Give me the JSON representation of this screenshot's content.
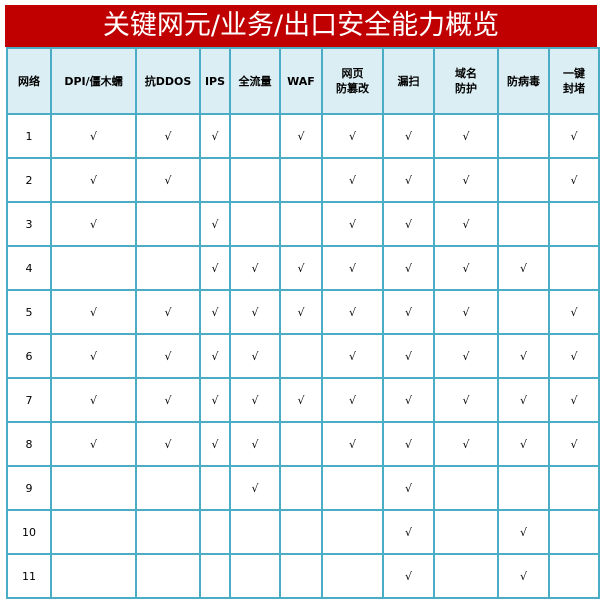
{
  "title": "关键网元/业务/出口安全能力概览",
  "columns": [
    "网络",
    "DPI/僵木蠕",
    "抗DDOS",
    "IPS",
    "全流量",
    "WAF",
    "网页\n防篡改",
    "漏扫",
    "域名\n防护",
    "防病毒",
    "一键\n封堵"
  ],
  "rows": [
    [
      "1",
      "√",
      "√",
      "√",
      "",
      "√",
      "√",
      "√",
      "√",
      "",
      "√"
    ],
    [
      "2",
      "√",
      "√",
      "",
      "",
      "",
      "√",
      "√",
      "√",
      "",
      "√"
    ],
    [
      "3",
      "√",
      "",
      "√",
      "",
      "",
      "√",
      "√",
      "√",
      "",
      ""
    ],
    [
      "4",
      "",
      "",
      "√",
      "√",
      "√",
      "√",
      "√",
      "√",
      "√",
      ""
    ],
    [
      "5",
      "√",
      "√",
      "√",
      "√",
      "√",
      "√",
      "√",
      "√",
      "",
      "√"
    ],
    [
      "6",
      "√",
      "√",
      "√",
      "√",
      "",
      "√",
      "√",
      "√",
      "√",
      "√"
    ],
    [
      "7",
      "√",
      "√",
      "√",
      "√",
      "√",
      "√",
      "√",
      "√",
      "√",
      "√"
    ],
    [
      "8",
      "√",
      "√",
      "√",
      "√",
      "",
      "√",
      "√",
      "√",
      "√",
      "√"
    ],
    [
      "9",
      "",
      "",
      "",
      "√",
      "",
      "",
      "√",
      "",
      "",
      ""
    ],
    [
      "10",
      "",
      "",
      "",
      "",
      "",
      "",
      "√",
      "",
      "√",
      ""
    ],
    [
      "11",
      "",
      "",
      "",
      "",
      "",
      "",
      "√",
      "",
      "√",
      ""
    ]
  ],
  "colors": {
    "title_bg": "#c00000",
    "header_bg": "#dbeef4",
    "border": "#4bacc6"
  }
}
